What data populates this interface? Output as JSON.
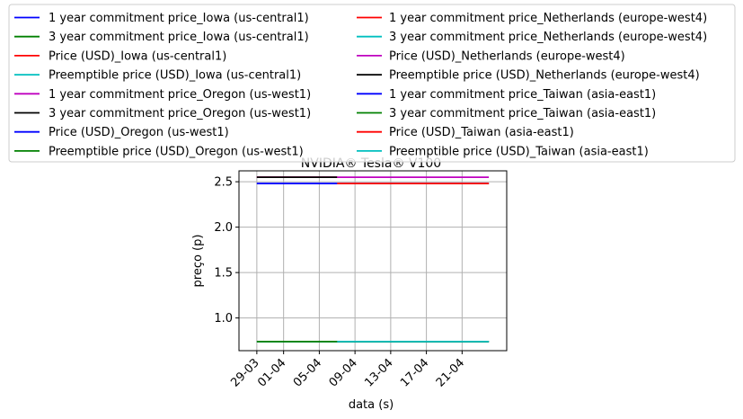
{
  "chart_data": {
    "type": "line",
    "title": "NVIDIA® Tesla® V100",
    "xlabel": "data (s)",
    "ylabel": "preço (p)",
    "x_ticks": [
      "29-03",
      "01-04",
      "05-04",
      "09-04",
      "13-04",
      "17-04",
      "21-04"
    ],
    "y_ticks": [
      "1.0",
      "1.5",
      "2.0",
      "2.5"
    ],
    "xlim": [
      "2019-03-27",
      "2019-04-26"
    ],
    "ylim": [
      0.64,
      2.62
    ],
    "grid": true,
    "legend_position": "top, 2 columns",
    "series": [
      {
        "name": "1 year commitment price_Iowa (us-central1)",
        "color": "#0000ff",
        "x": [
          "2019-03-29",
          "2019-04-07"
        ],
        "y": [
          2.48,
          2.48
        ]
      },
      {
        "name": "3 year commitment price_Iowa (us-central1)",
        "color": "#008000",
        "x": [
          "2019-03-29",
          "2019-04-07"
        ],
        "y": [
          0.74,
          0.74
        ]
      },
      {
        "name": "Price (USD)_Iowa (us-central1)",
        "color": "#ff0000",
        "x": [
          "2019-03-29",
          "2019-04-07"
        ],
        "y": [
          2.55,
          2.55
        ]
      },
      {
        "name": "Preemptible price (USD)_Iowa (us-central1)",
        "color": "#00bfbf",
        "x": [
          "2019-03-29",
          "2019-04-07"
        ],
        "y": [
          0.74,
          0.74
        ]
      },
      {
        "name": "1 year commitment price_Oregon (us-west1)",
        "color": "#bf00bf",
        "x": [
          "2019-03-29",
          "2019-04-07"
        ],
        "y": [
          2.55,
          2.55
        ]
      },
      {
        "name": "3 year commitment price_Oregon (us-west1)",
        "color": "#000000",
        "x": [
          "2019-03-29",
          "2019-04-07"
        ],
        "y": [
          2.55,
          2.55
        ]
      },
      {
        "name": "Price (USD)_Oregon (us-west1)",
        "color": "#0000ff",
        "x": [
          "2019-03-29",
          "2019-04-07"
        ],
        "y": [
          2.48,
          2.48
        ]
      },
      {
        "name": "Preemptible price (USD)_Oregon (us-west1)",
        "color": "#008000",
        "x": [
          "2019-03-29",
          "2019-04-07"
        ],
        "y": [
          0.74,
          0.74
        ]
      },
      {
        "name": "1 year commitment price_Netherlands (europe-west4)",
        "color": "#ff0000",
        "x": [
          "2019-04-07",
          "2019-04-24"
        ],
        "y": [
          2.48,
          2.48
        ]
      },
      {
        "name": "3 year commitment price_Netherlands (europe-west4)",
        "color": "#00bfbf",
        "x": [
          "2019-04-07",
          "2019-04-24"
        ],
        "y": [
          0.74,
          0.74
        ]
      },
      {
        "name": "Price (USD)_Netherlands (europe-west4)",
        "color": "#bf00bf",
        "x": [
          "2019-04-07",
          "2019-04-24"
        ],
        "y": [
          2.55,
          2.55
        ]
      },
      {
        "name": "Preemptible price (USD)_Netherlands (europe-west4)",
        "color": "#000000",
        "x": [
          "2019-04-07",
          "2019-04-24"
        ],
        "y": [
          0.74,
          0.74
        ]
      },
      {
        "name": "1 year commitment price_Taiwan (asia-east1)",
        "color": "#0000ff",
        "x": [
          "2019-04-07",
          "2019-04-24"
        ],
        "y": [
          2.48,
          2.48
        ]
      },
      {
        "name": "3 year commitment price_Taiwan (asia-east1)",
        "color": "#008000",
        "x": [
          "2019-04-07",
          "2019-04-24"
        ],
        "y": [
          0.74,
          0.74
        ]
      },
      {
        "name": "Price (USD)_Taiwan (asia-east1)",
        "color": "#ff0000",
        "x": [
          "2019-04-07",
          "2019-04-24"
        ],
        "y": [
          2.48,
          2.48
        ]
      },
      {
        "name": "Preemptible price (USD)_Taiwan (asia-east1)",
        "color": "#00bfbf",
        "x": [
          "2019-04-07",
          "2019-04-24"
        ],
        "y": [
          0.74,
          0.74
        ]
      }
    ]
  }
}
